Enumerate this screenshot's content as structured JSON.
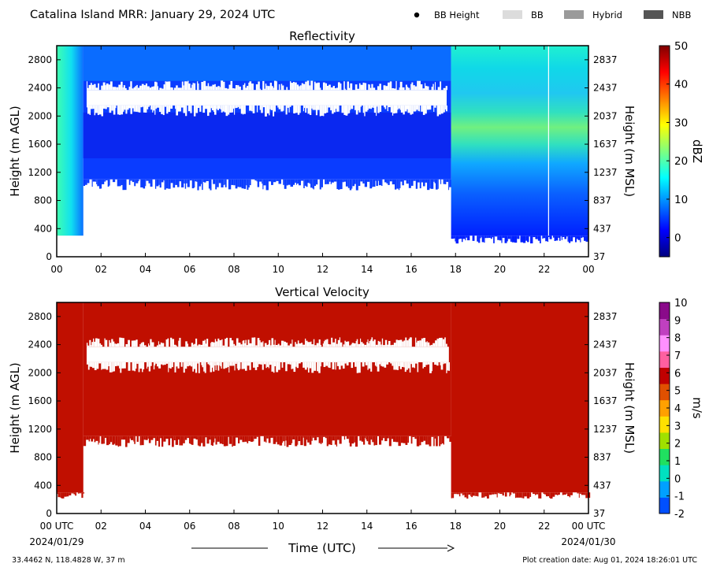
{
  "header": {
    "title": "Catalina Island MRR:  January 29, 2024 UTC",
    "legend": [
      {
        "label": "BB Height",
        "marker": "dot",
        "color": "#000000"
      },
      {
        "label": "BB",
        "marker": "swatch",
        "color": "#dcdcdc"
      },
      {
        "label": "Hybrid",
        "marker": "swatch",
        "color": "#9a9a9a"
      },
      {
        "label": "NBB",
        "marker": "swatch",
        "color": "#555555"
      }
    ]
  },
  "footer": {
    "location": "33.4462 N, 118.4828 W, 37 m",
    "creation": "Plot creation date: Aug 01, 2024 18:26:01 UTC",
    "xlabel": "Time (UTC)",
    "start_date": "2024/01/29",
    "end_date": "2024/01/30"
  },
  "chart_data": [
    {
      "type": "heatmap",
      "title": "Reflectivity",
      "ylabel": "Height (m AGL)",
      "ylabel_right": "Height (m MSL)",
      "xlim": [
        0,
        24
      ],
      "ylim": [
        0,
        3000
      ],
      "x_ticks": [
        "00",
        "02",
        "04",
        "06",
        "08",
        "10",
        "12",
        "14",
        "16",
        "18",
        "20",
        "22",
        "00"
      ],
      "y_ticks": [
        0,
        400,
        800,
        1200,
        1600,
        2000,
        2400,
        2800
      ],
      "y_ticks_right": [
        37,
        437,
        837,
        1237,
        1637,
        2037,
        2437,
        2837
      ],
      "colorbar": {
        "label": "dBZ",
        "range": [
          -5,
          50
        ],
        "ticks": [
          0,
          10,
          20,
          30,
          40,
          50
        ],
        "colors": [
          "#00007f",
          "#0000ff",
          "#007fff",
          "#00ffff",
          "#7fff7f",
          "#ffff00",
          "#ff7f00",
          "#ff0000",
          "#7f0000"
        ]
      },
      "segments": [
        {
          "t0": 0.0,
          "t1": 1.2,
          "bottom": 300,
          "top": 3000,
          "gaps": [],
          "value_desc": "cyan-green 5-12"
        },
        {
          "t0": 1.2,
          "t1": 17.8,
          "bottom": 1100,
          "top": 3000,
          "gaps": [
            [
              2100,
              2450
            ]
          ],
          "value_desc": "blue 0-5"
        },
        {
          "t0": 17.8,
          "t1": 24.0,
          "bottom": 300,
          "top": 3000,
          "gaps": [],
          "value_desc": "blue-cyan-green 0-20"
        }
      ],
      "missing_line_x": 22.2
    },
    {
      "type": "heatmap",
      "title": "Vertical Velocity",
      "ylabel": "Height (m AGL)",
      "ylabel_right": "Height (m MSL)",
      "xlim": [
        0,
        24
      ],
      "ylim": [
        0,
        3000
      ],
      "x_ticks": [
        "00 UTC",
        "02",
        "04",
        "06",
        "08",
        "10",
        "12",
        "14",
        "16",
        "18",
        "20",
        "22",
        "00 UTC"
      ],
      "y_ticks": [
        0,
        400,
        800,
        1200,
        1600,
        2000,
        2400,
        2800
      ],
      "y_ticks_right": [
        37,
        437,
        837,
        1237,
        1637,
        2037,
        2437,
        2837
      ],
      "colorbar": {
        "label": "m/s",
        "range": [
          -2,
          10
        ],
        "ticks": [
          -2,
          -1,
          0,
          1,
          2,
          3,
          4,
          5,
          6,
          7,
          8,
          9,
          10
        ],
        "colors": [
          "#0050ff",
          "#00a0ff",
          "#00e0c0",
          "#20e060",
          "#a0e000",
          "#ffe000",
          "#ffa000",
          "#e05000",
          "#c00000",
          "#ff60a0",
          "#ff90ff",
          "#c040c0",
          "#8a0a8a"
        ]
      },
      "segments": [
        {
          "t0": 0.0,
          "t1": 1.2,
          "bottom": 300,
          "top": 3000,
          "gaps": [],
          "value_desc": "6"
        },
        {
          "t0": 1.2,
          "t1": 17.8,
          "bottom": 1100,
          "top": 3000,
          "gaps": [
            [
              2100,
              2450
            ]
          ],
          "value_desc": "6"
        },
        {
          "t0": 17.8,
          "t1": 24.0,
          "bottom": 300,
          "top": 3000,
          "gaps": [],
          "value_desc": "6"
        }
      ]
    }
  ]
}
